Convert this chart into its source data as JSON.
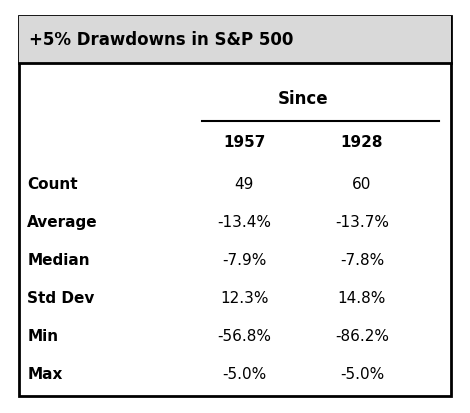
{
  "title": "+5% Drawdowns in S&P 500",
  "since_label": "Since",
  "col_headers": [
    "1957",
    "1928"
  ],
  "row_labels": [
    "Count",
    "Average",
    "Median",
    "Std Dev",
    "Min",
    "Max"
  ],
  "col1_values": [
    "49",
    "-13.4%",
    "-7.9%",
    "12.3%",
    "-56.8%",
    "-5.0%"
  ],
  "col2_values": [
    "60",
    "-13.7%",
    "-7.8%",
    "14.8%",
    "-86.2%",
    "-5.0%"
  ],
  "title_bg": "#d9d9d9",
  "table_bg": "#ffffff",
  "border_color": "#000000",
  "title_fontsize": 12,
  "header_fontsize": 11,
  "data_fontsize": 11,
  "fig_bg": "#ffffff"
}
